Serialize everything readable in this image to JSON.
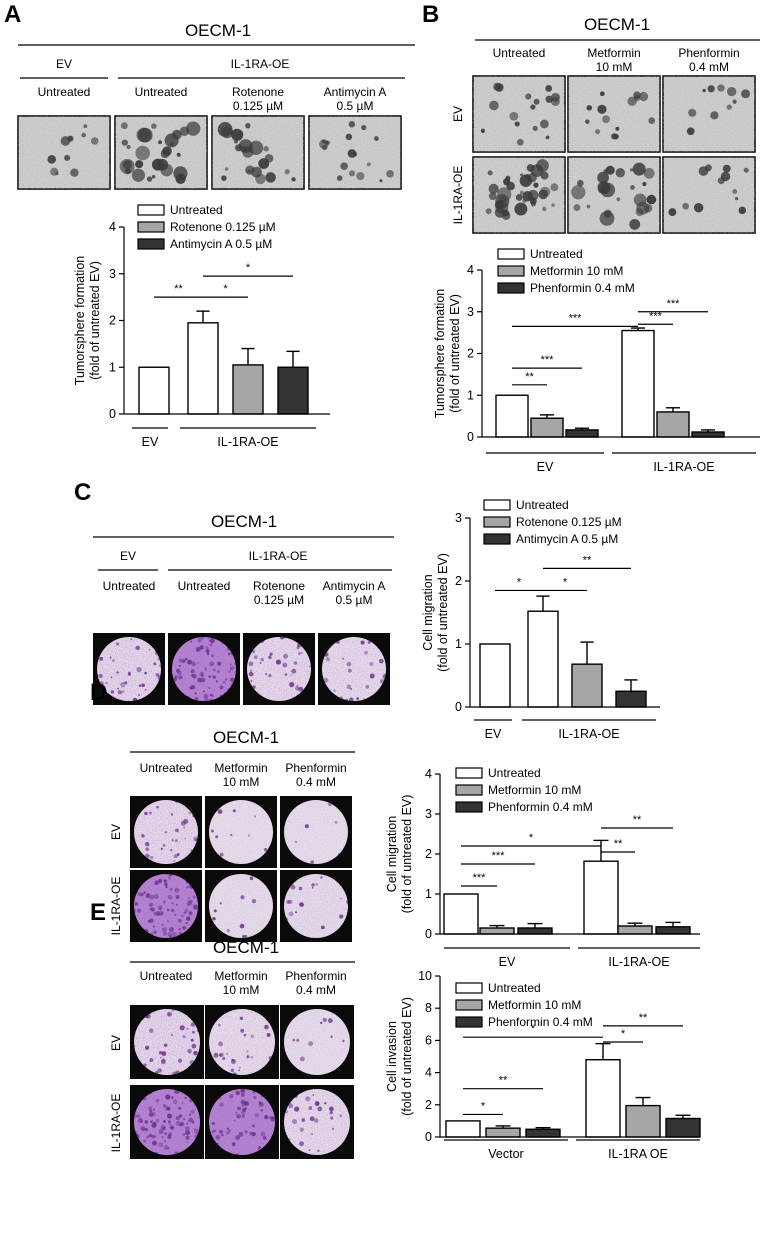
{
  "panels": {
    "A": {
      "label": "A",
      "header": "OECM-1",
      "groups": [
        "EV",
        "IL-1RA-OE"
      ],
      "conditions": [
        "Untreated",
        "Untreated",
        "Rotenone\n0.125 µM",
        "Antimycin A\n0.5 µM"
      ]
    },
    "B": {
      "label": "B",
      "header": "OECM-1",
      "columns": [
        "Untreated",
        "Metformin\n10 mM",
        "Phenformin\n0.4 mM"
      ],
      "rows": [
        "EV",
        "IL-1RA-OE"
      ]
    },
    "C": {
      "label": "C",
      "header": "OECM-1",
      "groups": [
        "EV",
        "IL-1RA-OE"
      ],
      "conditions": [
        "Untreated",
        "Untreated",
        "Rotenone\n0.125 µM",
        "Antimycin A\n0.5 µM"
      ]
    },
    "D": {
      "label": "D",
      "header": "OECM-1",
      "columns": [
        "Untreated",
        "Metformin\n10 mM",
        "Phenformin\n0.4 mM"
      ],
      "rows": [
        "EV",
        "IL-1RA-OE"
      ]
    },
    "E": {
      "label": "E",
      "header": "OECM-1",
      "columns": [
        "Untreated",
        "Metformin\n10 mM",
        "Phenformin\n0.4 mM"
      ],
      "rows": [
        "EV",
        "IL-1RA-OE"
      ]
    }
  },
  "colors": {
    "untreated": "#ffffff",
    "mid": "#a6a6a6",
    "dark": "#333333",
    "stain": "#9b59b6"
  },
  "chart_data": [
    {
      "panel": "A",
      "type": "bar",
      "ylabel": "Tumorsphere formation\n(fold of untreated EV)",
      "ylim": [
        0,
        4
      ],
      "yticks": [
        0,
        1,
        2,
        3,
        4
      ],
      "legend": [
        "Untreated",
        "Rotenone 0.125 µM",
        "Antimycin A 0.5 µM"
      ],
      "groups": [
        "EV",
        "IL-1RA-OE"
      ],
      "bars": [
        {
          "group": "EV",
          "series": "Untreated",
          "value": 1.0,
          "error": 0
        },
        {
          "group": "IL-1RA-OE",
          "series": "Untreated",
          "value": 1.95,
          "error": 0.25
        },
        {
          "group": "IL-1RA-OE",
          "series": "Rotenone 0.125 µM",
          "value": 1.05,
          "error": 0.35
        },
        {
          "group": "IL-1RA-OE",
          "series": "Antimycin A 0.5 µM",
          "value": 1.0,
          "error": 0.34
        }
      ],
      "significance": [
        "**",
        "*",
        "*"
      ]
    },
    {
      "panel": "B",
      "type": "bar",
      "ylabel": "Tumorsphere formation\n(fold of untreated EV)",
      "ylim": [
        0,
        4
      ],
      "yticks": [
        0,
        1,
        2,
        3,
        4
      ],
      "legend": [
        "Untreated",
        "Metformin 10 mM",
        "Phenformin 0.4 mM"
      ],
      "groups": [
        "EV",
        "IL-1RA-OE"
      ],
      "bars": [
        {
          "group": "EV",
          "series": "Untreated",
          "value": 1.0,
          "error": 0
        },
        {
          "group": "EV",
          "series": "Metformin 10 mM",
          "value": 0.45,
          "error": 0.08
        },
        {
          "group": "EV",
          "series": "Phenformin 0.4 mM",
          "value": 0.17,
          "error": 0.04
        },
        {
          "group": "IL-1RA-OE",
          "series": "Untreated",
          "value": 2.55,
          "error": 0.06
        },
        {
          "group": "IL-1RA-OE",
          "series": "Metformin 10 mM",
          "value": 0.6,
          "error": 0.1
        },
        {
          "group": "IL-1RA-OE",
          "series": "Phenformin 0.4 mM",
          "value": 0.12,
          "error": 0.05
        }
      ],
      "significance": [
        "**",
        "***",
        "***",
        "***",
        "***"
      ]
    },
    {
      "panel": "C",
      "type": "bar",
      "ylabel": "Cell migration\n(fold of untreated EV)",
      "ylim": [
        0,
        3
      ],
      "yticks": [
        0,
        1,
        2,
        3
      ],
      "legend": [
        "Untreated",
        "Rotenone 0.125 µM",
        "Antimycin A 0.5 µM"
      ],
      "groups": [
        "EV",
        "IL-1RA-OE"
      ],
      "bars": [
        {
          "group": "EV",
          "series": "Untreated",
          "value": 1.0,
          "error": 0
        },
        {
          "group": "IL-1RA-OE",
          "series": "Untreated",
          "value": 1.52,
          "error": 0.24
        },
        {
          "group": "IL-1RA-OE",
          "series": "Rotenone 0.125 µM",
          "value": 0.68,
          "error": 0.35
        },
        {
          "group": "IL-1RA-OE",
          "series": "Antimycin A 0.5 µM",
          "value": 0.25,
          "error": 0.18
        }
      ],
      "significance": [
        "*",
        "*",
        "**"
      ]
    },
    {
      "panel": "D",
      "type": "bar",
      "ylabel": "Cell migration\n(fold of untreated EV)",
      "ylim": [
        0,
        4
      ],
      "yticks": [
        0,
        1,
        2,
        3,
        4
      ],
      "legend": [
        "Untreated",
        "Metformin 10 mM",
        "Phenformin 0.4 mM"
      ],
      "groups": [
        "EV",
        "IL-1RA-OE"
      ],
      "bars": [
        {
          "group": "EV",
          "series": "Untreated",
          "value": 1.0,
          "error": 0
        },
        {
          "group": "EV",
          "series": "Metformin 10 mM",
          "value": 0.15,
          "error": 0.06
        },
        {
          "group": "EV",
          "series": "Phenformin 0.4 mM",
          "value": 0.15,
          "error": 0.11
        },
        {
          "group": "IL-1RA-OE",
          "series": "Untreated",
          "value": 1.82,
          "error": 0.52
        },
        {
          "group": "IL-1RA-OE",
          "series": "Metformin 10 mM",
          "value": 0.2,
          "error": 0.07
        },
        {
          "group": "IL-1RA-OE",
          "series": "Phenformin 0.4 mM",
          "value": 0.18,
          "error": 0.11
        }
      ],
      "significance": [
        "***",
        "***",
        "*",
        "**",
        "**"
      ]
    },
    {
      "panel": "E",
      "type": "bar",
      "ylabel": "Cell invasion\n(fold of untreated EV)",
      "ylim": [
        0,
        10
      ],
      "yticks": [
        0,
        2,
        4,
        6,
        8,
        10
      ],
      "legend": [
        "Untreated",
        "Metformin 10 mM",
        "Phenformin 0.4 mM"
      ],
      "groups": [
        "Vector",
        "IL-1RA OE"
      ],
      "bars": [
        {
          "group": "Vector",
          "series": "Untreated",
          "value": 1.0,
          "error": 0
        },
        {
          "group": "Vector",
          "series": "Metformin 10 mM",
          "value": 0.55,
          "error": 0.14
        },
        {
          "group": "Vector",
          "series": "Phenformin 0.4 mM",
          "value": 0.48,
          "error": 0.1
        },
        {
          "group": "IL-1RA OE",
          "series": "Untreated",
          "value": 4.8,
          "error": 1.0
        },
        {
          "group": "IL-1RA OE",
          "series": "Metformin 10 mM",
          "value": 1.95,
          "error": 0.5
        },
        {
          "group": "IL-1RA OE",
          "series": "Phenformin 0.4 mM",
          "value": 1.15,
          "error": 0.2
        }
      ],
      "significance": [
        "*",
        "**",
        "*",
        "*",
        "**"
      ]
    }
  ]
}
